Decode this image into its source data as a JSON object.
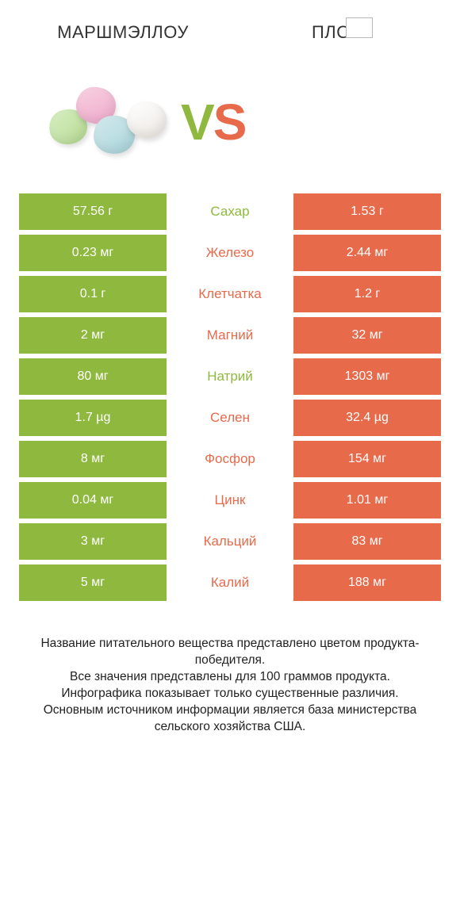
{
  "colors": {
    "green": "#8fb93e",
    "orange": "#e76a4b",
    "text": "#333333"
  },
  "header": {
    "left": "МАРШМЭЛЛОУ",
    "right": "ПЛОВ"
  },
  "vs": {
    "v": "V",
    "s": "S"
  },
  "rows": [
    {
      "left": "57.56 г",
      "label": "Сахар",
      "right": "1.53 г",
      "winner": "left"
    },
    {
      "left": "0.23 мг",
      "label": "Железо",
      "right": "2.44 мг",
      "winner": "right"
    },
    {
      "left": "0.1 г",
      "label": "Клетчатка",
      "right": "1.2 г",
      "winner": "right"
    },
    {
      "left": "2 мг",
      "label": "Магний",
      "right": "32 мг",
      "winner": "right"
    },
    {
      "left": "80 мг",
      "label": "Натрий",
      "right": "1303 мг",
      "winner": "left"
    },
    {
      "left": "1.7 µg",
      "label": "Селен",
      "right": "32.4 µg",
      "winner": "right"
    },
    {
      "left": "8 мг",
      "label": "Фосфор",
      "right": "154 мг",
      "winner": "right"
    },
    {
      "left": "0.04 мг",
      "label": "Цинк",
      "right": "1.01 мг",
      "winner": "right"
    },
    {
      "left": "3 мг",
      "label": "Кальций",
      "right": "83 мг",
      "winner": "right"
    },
    {
      "left": "5 мг",
      "label": "Калий",
      "right": "188 мг",
      "winner": "right"
    }
  ],
  "footnote": "Название питательного вещества представлено цветом продукта-победителя.\nВсе значения представлены для 100 граммов продукта.\nИнфографика показывает только существенные различия.\nОсновным источником информации является база министерства сельского хозяйства США."
}
